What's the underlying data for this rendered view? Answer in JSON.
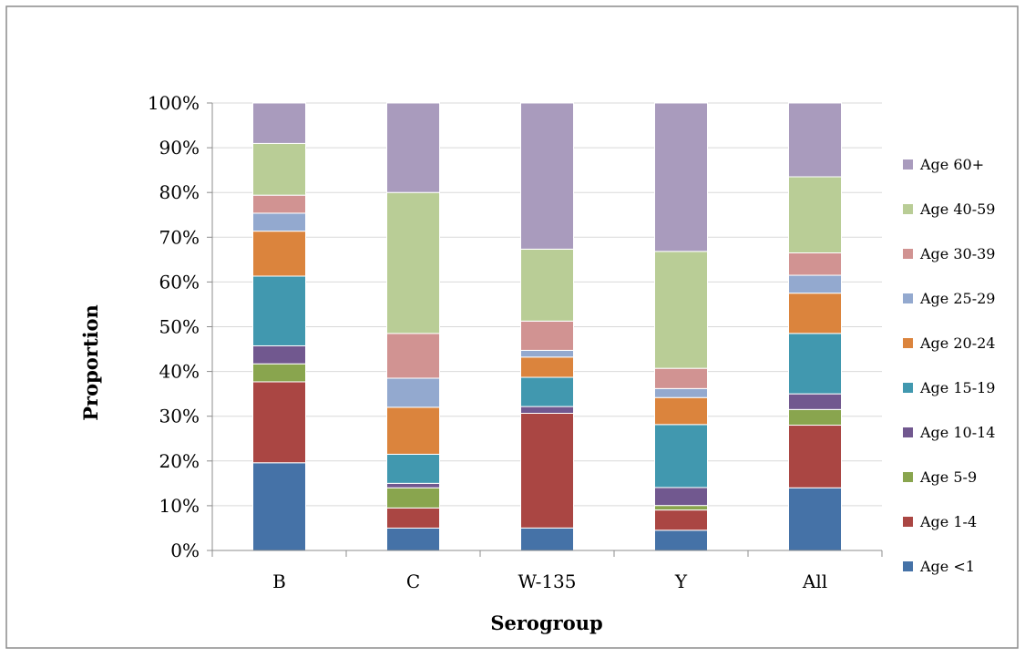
{
  "chart_data": {
    "type": "bar",
    "stacked": true,
    "percent_stacked": true,
    "categories": [
      "B",
      "C",
      "W-135",
      "Y",
      "All"
    ],
    "xlabel": "Serogroup",
    "ylabel": "Proportion",
    "yticks": [
      "0%",
      "10%",
      "20%",
      "30%",
      "40%",
      "50%",
      "60%",
      "70%",
      "80%",
      "90%",
      "100%"
    ],
    "ylim": [
      0,
      100
    ],
    "grid": true,
    "legend_position": "right",
    "series": [
      {
        "name": "Age <1",
        "color": "#4572a7",
        "values": [
          19.5,
          5.0,
          5.0,
          4.5,
          14.0
        ]
      },
      {
        "name": "Age 1-4",
        "color": "#aa4643",
        "values": [
          18.0,
          4.5,
          25.5,
          4.5,
          14.0
        ]
      },
      {
        "name": "Age 5-9",
        "color": "#89a54e",
        "values": [
          4.0,
          4.5,
          0.0,
          1.0,
          3.5
        ]
      },
      {
        "name": "Age 10-14",
        "color": "#71588f",
        "values": [
          4.0,
          1.0,
          1.5,
          4.0,
          3.5
        ]
      },
      {
        "name": "Age 15-19",
        "color": "#4198af",
        "values": [
          15.5,
          6.5,
          6.5,
          14.0,
          13.5
        ]
      },
      {
        "name": "Age 20-24",
        "color": "#db843d",
        "values": [
          10.0,
          10.5,
          4.5,
          6.0,
          9.0
        ]
      },
      {
        "name": "Age 25-29",
        "color": "#93a9cf",
        "values": [
          4.0,
          6.5,
          1.5,
          2.0,
          4.0
        ]
      },
      {
        "name": "Age 30-39",
        "color": "#d19392",
        "values": [
          4.0,
          10.0,
          6.5,
          4.5,
          5.0
        ]
      },
      {
        "name": "Age 40-59",
        "color": "#b9cd96",
        "values": [
          11.5,
          31.5,
          16.0,
          26.0,
          17.0
        ]
      },
      {
        "name": "Age 60+",
        "color": "#a99bbd",
        "values": [
          9.0,
          20.0,
          32.5,
          33.0,
          16.5
        ]
      }
    ]
  }
}
